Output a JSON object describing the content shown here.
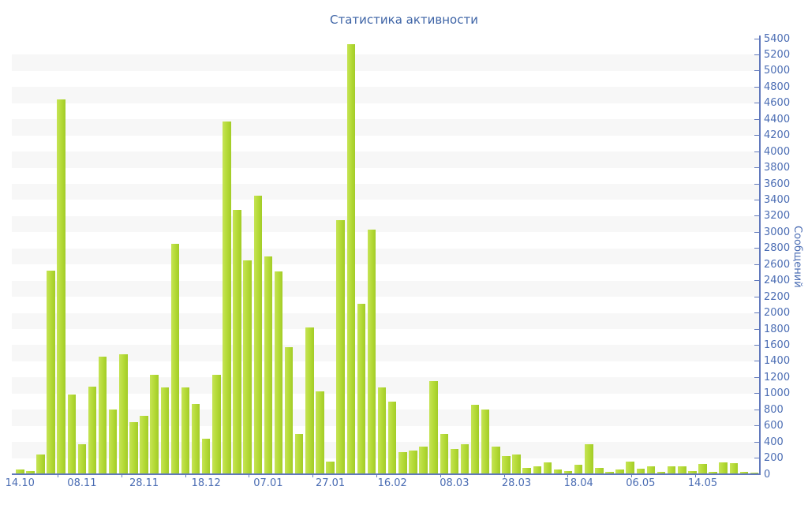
{
  "chart_data": {
    "type": "bar",
    "title": "Статистика активности",
    "ylabel": "Сообщений",
    "ylim": [
      0,
      5400
    ],
    "ytick_step": 200,
    "grid": "alternating horizontal stripes every 200 units",
    "legend": "none",
    "x_labels": [
      "14.10",
      "08.11",
      "28.11",
      "18.12",
      "07.01",
      "27.01",
      "16.02",
      "08.03",
      "28.03",
      "18.04",
      "06.05",
      "14.05"
    ],
    "x_label_every_n_bars": 6,
    "values": [
      60,
      40,
      240,
      2520,
      4650,
      990,
      370,
      1090,
      1460,
      800,
      1490,
      650,
      720,
      1230,
      1080,
      2860,
      1080,
      870,
      440,
      1230,
      4370,
      3280,
      2650,
      3450,
      2700,
      2510,
      1580,
      500,
      1820,
      1030,
      160,
      3150,
      5330,
      2110,
      3030,
      1080,
      900,
      270,
      290,
      340,
      1150,
      500,
      310,
      370,
      860,
      800,
      340,
      230,
      240,
      80,
      100,
      150,
      60,
      40,
      120,
      370,
      80,
      30,
      60,
      160,
      70,
      100,
      30,
      100,
      100,
      40,
      130,
      30,
      150,
      140,
      30,
      20
    ]
  },
  "colors": {
    "bar": "#b3d935",
    "bar_highlight": "#c6e455",
    "axis": "#6179bc",
    "tick_text": "#4a6cb3",
    "title_text": "#3e64a6",
    "stripe": "#f7f7f7",
    "background": "#ffffff"
  }
}
